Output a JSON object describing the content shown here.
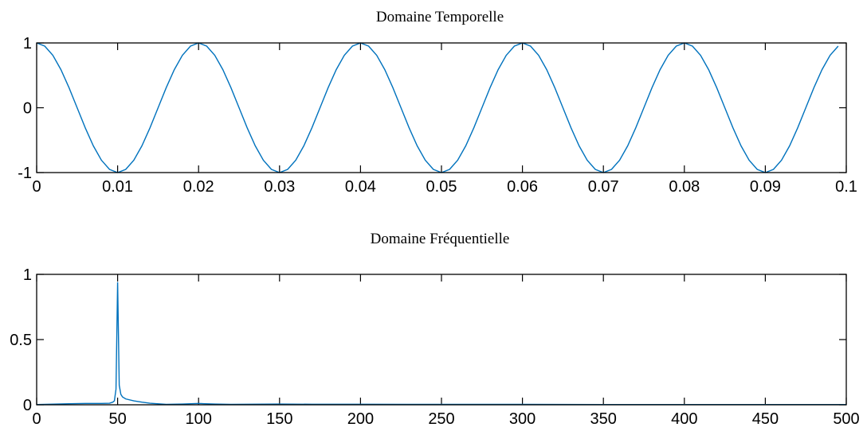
{
  "chart_data": [
    {
      "type": "line",
      "title": "Domaine Temporelle",
      "xlabel": "",
      "ylabel": "",
      "xlim": [
        0,
        0.1
      ],
      "ylim": [
        -1,
        1
      ],
      "xticks": [
        "0",
        "0.01",
        "0.02",
        "0.03",
        "0.04",
        "0.05",
        "0.06",
        "0.07",
        "0.08",
        "0.09",
        "0.1"
      ],
      "yticks": [
        "-1",
        "0",
        "1"
      ],
      "grid": false,
      "series": [
        {
          "color": "#0072BD",
          "function": "cos(2*pi*50*t)",
          "x_start": 0,
          "x_end": 0.099,
          "x_step": 0.001
        }
      ]
    },
    {
      "type": "line",
      "title": "Domaine Fréquentielle",
      "xlabel": "",
      "ylabel": "",
      "xlim": [
        0,
        500
      ],
      "ylim": [
        0,
        1
      ],
      "xticks": [
        "0",
        "50",
        "100",
        "150",
        "200",
        "250",
        "300",
        "350",
        "400",
        "450",
        "500"
      ],
      "yticks": [
        "0",
        "0.5",
        "1"
      ],
      "grid": false,
      "series": [
        {
          "color": "#0072BD",
          "x": [
            0,
            10,
            20,
            30,
            40,
            45,
            47,
            48,
            49,
            50,
            51,
            52,
            53,
            55,
            60,
            65,
            70,
            80,
            90,
            100,
            110,
            120,
            130,
            150,
            170,
            200,
            250,
            300,
            350,
            400,
            450,
            500
          ],
          "y": [
            0.002,
            0.005,
            0.008,
            0.01,
            0.01,
            0.012,
            0.02,
            0.03,
            0.12,
            0.94,
            0.15,
            0.08,
            0.06,
            0.045,
            0.03,
            0.02,
            0.012,
            0.003,
            0.006,
            0.01,
            0.006,
            0.003,
            0.004,
            0.006,
            0.004,
            0.004,
            0.003,
            0.003,
            0.002,
            0.002,
            0.002,
            0.002
          ]
        }
      ]
    }
  ]
}
